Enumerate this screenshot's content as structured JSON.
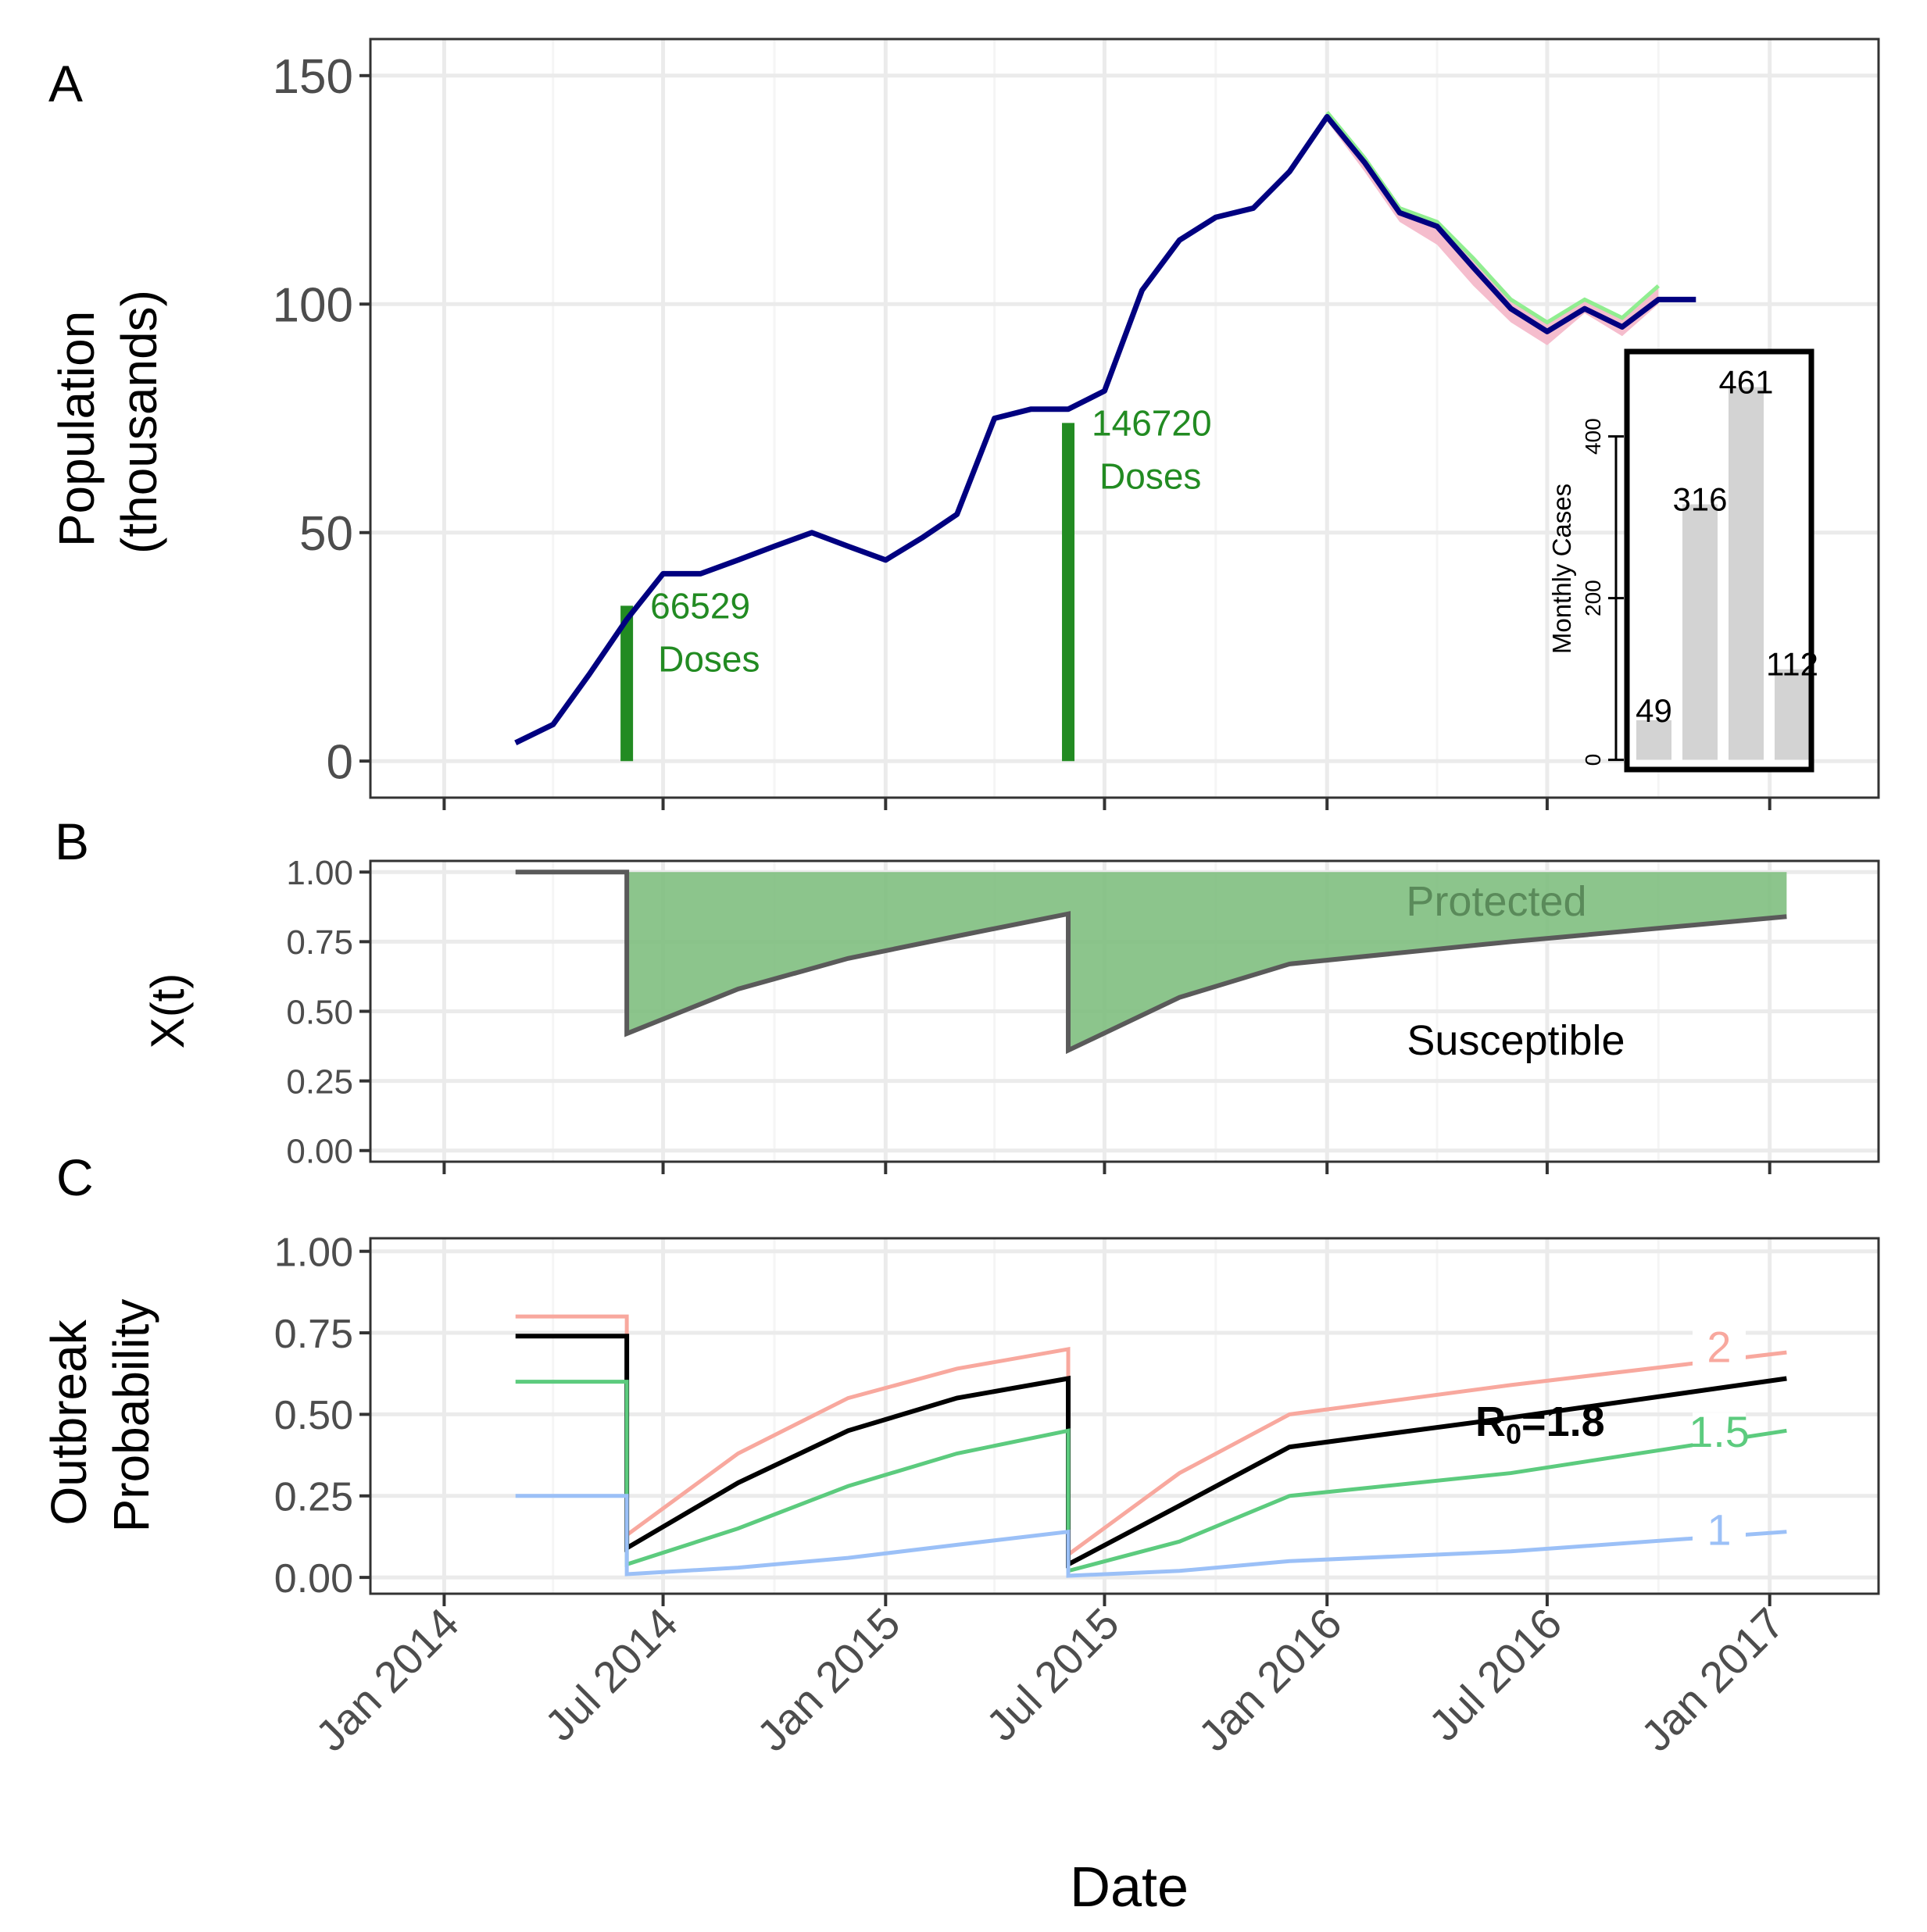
{
  "colors": {
    "population": "#000080",
    "doses": "#228B22",
    "ribbon_pink": "#F4B6C8",
    "ribbon_green": "#90EE90",
    "protected_fill": "#7FBF7F",
    "susceptible_line": "#5a5a5a",
    "r2": "#F8A89E",
    "r18": "#000000",
    "r15": "#5CCB7E",
    "r1": "#9BC0F7",
    "grid": "#EBEBEB",
    "inset_bar": "#D3D3D3"
  },
  "xaxis": {
    "label": "Date",
    "ticks": [
      "Jan 2014",
      "Jul 2014",
      "Jan 2015",
      "Jul 2015",
      "Jan 2016",
      "Jul 2016",
      "Jan 2017"
    ]
  },
  "chart_data": [
    {
      "panel": "A",
      "type": "line",
      "ylabel_line1": "Population",
      "ylabel_line2": "(thousands)",
      "yticks": [
        "0",
        "50",
        "100",
        "150"
      ],
      "ylim": [
        0,
        155
      ],
      "grid": true,
      "series": [
        {
          "key": "population",
          "x": [
            "2014-03-01",
            "2014-04-01",
            "2014-05-01",
            "2014-06-01",
            "2014-07-01",
            "2014-08-01",
            "2014-09-01",
            "2014-10-01",
            "2014-11-01",
            "2014-12-01",
            "2015-01-01",
            "2015-02-01",
            "2015-03-01",
            "2015-04-01",
            "2015-05-01",
            "2015-06-01",
            "2015-07-01",
            "2015-08-01",
            "2015-09-01",
            "2015-10-01",
            "2015-11-01",
            "2015-12-01",
            "2016-01-01",
            "2016-02-01",
            "2016-03-01",
            "2016-04-01",
            "2016-05-01",
            "2016-06-01",
            "2016-07-01",
            "2016-08-01",
            "2016-09-01",
            "2016-10-01",
            "2016-11-01"
          ],
          "y": [
            4,
            8,
            19,
            31,
            41,
            41,
            44,
            47,
            50,
            47,
            44,
            49,
            54,
            75,
            77,
            77,
            81,
            103,
            114,
            119,
            121,
            129,
            141,
            131,
            120,
            117,
            108,
            99,
            94,
            99,
            95,
            101,
            101
          ]
        }
      ],
      "ribbon": {
        "x": [
          "2016-01-01",
          "2016-02-01",
          "2016-03-01",
          "2016-04-01",
          "2016-05-01",
          "2016-06-01",
          "2016-07-01",
          "2016-08-01",
          "2016-09-01",
          "2016-10-01"
        ],
        "upper": [
          142,
          132,
          121,
          118,
          110,
          101,
          96,
          101,
          97,
          104
        ],
        "lower": [
          140,
          129,
          118,
          113,
          104,
          96,
          91,
          98,
          93,
          100
        ]
      },
      "doses": [
        {
          "x": "2014-06-01",
          "y": 34,
          "value_label": "66529",
          "unit_label": "Doses"
        },
        {
          "x": "2015-06-01",
          "y": 74,
          "value_label": "146720",
          "unit_label": "Doses"
        }
      ],
      "inset": {
        "type": "bar",
        "ylabel": "Monthly Cases",
        "yticks": [
          "0",
          "200",
          "400"
        ],
        "ylim": [
          0,
          500
        ],
        "values": [
          49,
          316,
          461,
          112
        ],
        "labels": [
          "49",
          "316",
          "461",
          "112"
        ]
      }
    },
    {
      "panel": "B",
      "type": "area",
      "ylabel": "X(t)",
      "yticks": [
        "0.00",
        "0.25",
        "0.50",
        "0.75",
        "1.00"
      ],
      "ylim": [
        0,
        1
      ],
      "grid": true,
      "protected_label": "Protected",
      "susceptible_label": "Susceptible",
      "series": [
        {
          "key": "susceptible",
          "x": [
            "2014-03-01",
            "2014-06-01",
            "2014-06-01",
            "2014-09-01",
            "2014-12-01",
            "2015-03-01",
            "2015-06-01",
            "2015-06-01",
            "2015-09-01",
            "2015-12-01",
            "2016-06-01",
            "2017-01-15"
          ],
          "y": [
            1.0,
            1.0,
            0.42,
            0.58,
            0.69,
            0.77,
            0.85,
            0.36,
            0.55,
            0.67,
            0.75,
            0.84
          ]
        }
      ]
    },
    {
      "panel": "C",
      "type": "line",
      "ylabel_line1": "Outbreak",
      "ylabel_line2": "Probability",
      "yticks": [
        "0.00",
        "0.25",
        "0.50",
        "0.75",
        "1.00"
      ],
      "ylim": [
        0,
        1
      ],
      "grid": true,
      "r0_label_prefix": "R",
      "r0_label_sub": "0",
      "r0_label_suffix": "=1.8",
      "series": [
        {
          "key": "r2",
          "label": "2",
          "x": [
            "2014-03-01",
            "2014-06-01",
            "2014-06-01",
            "2014-09-01",
            "2014-12-01",
            "2015-03-01",
            "2015-06-01",
            "2015-06-01",
            "2015-09-01",
            "2015-12-01",
            "2016-06-01",
            "2017-01-15"
          ],
          "y": [
            0.8,
            0.8,
            0.13,
            0.38,
            0.55,
            0.64,
            0.7,
            0.07,
            0.32,
            0.5,
            0.59,
            0.69
          ]
        },
        {
          "key": "r18",
          "label": "",
          "x": [
            "2014-03-01",
            "2014-06-01",
            "2014-06-01",
            "2014-09-01",
            "2014-12-01",
            "2015-03-01",
            "2015-06-01",
            "2015-06-01",
            "2015-09-01",
            "2015-12-01",
            "2016-06-01",
            "2017-01-15"
          ],
          "y": [
            0.74,
            0.74,
            0.09,
            0.29,
            0.45,
            0.55,
            0.61,
            0.04,
            0.22,
            0.4,
            0.49,
            0.61
          ]
        },
        {
          "key": "r15",
          "label": "1.5",
          "x": [
            "2014-03-01",
            "2014-06-01",
            "2014-06-01",
            "2014-09-01",
            "2014-12-01",
            "2015-03-01",
            "2015-06-01",
            "2015-06-01",
            "2015-09-01",
            "2015-12-01",
            "2016-06-01",
            "2017-01-15"
          ],
          "y": [
            0.6,
            0.6,
            0.04,
            0.15,
            0.28,
            0.38,
            0.45,
            0.02,
            0.11,
            0.25,
            0.32,
            0.45
          ]
        },
        {
          "key": "r1",
          "label": "1",
          "x": [
            "2014-03-01",
            "2014-06-01",
            "2014-06-01",
            "2014-09-01",
            "2014-12-01",
            "2015-03-01",
            "2015-06-01",
            "2015-06-01",
            "2015-09-01",
            "2015-12-01",
            "2016-06-01",
            "2017-01-15"
          ],
          "y": [
            0.25,
            0.25,
            0.01,
            0.03,
            0.06,
            0.1,
            0.14,
            0.005,
            0.02,
            0.05,
            0.08,
            0.14
          ]
        }
      ]
    }
  ]
}
